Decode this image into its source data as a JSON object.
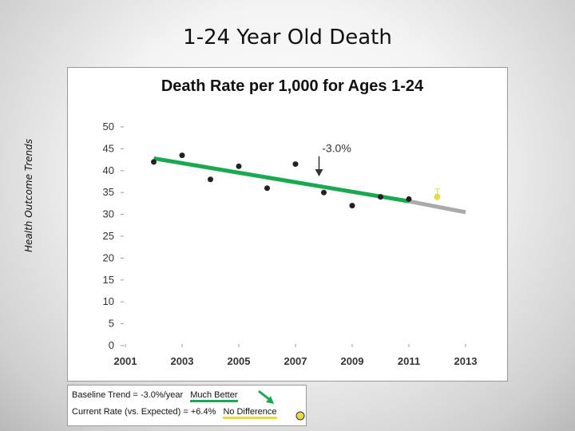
{
  "slide": {
    "title": "1-24 Year Old Death",
    "side_label": "Health Outcome Trends"
  },
  "chart_data": {
    "type": "scatter",
    "title": "Death Rate per 1,000 for Ages 1-24",
    "xlabel": "",
    "ylabel": "",
    "x_ticks": [
      2001,
      2003,
      2005,
      2007,
      2009,
      2011,
      2013
    ],
    "y_ticks": [
      0,
      5,
      10,
      15,
      20,
      25,
      30,
      35,
      40,
      45,
      50
    ],
    "xlim": [
      2001,
      2013
    ],
    "ylim": [
      0,
      50
    ],
    "grid": false,
    "series": [
      {
        "points": [
          {
            "x": 2002,
            "y": 42
          },
          {
            "x": 2003,
            "y": 43.5
          },
          {
            "x": 2004,
            "y": 38
          },
          {
            "x": 2005,
            "y": 41
          },
          {
            "x": 2006,
            "y": 36
          },
          {
            "x": 2007,
            "y": 41.5
          },
          {
            "x": 2008,
            "y": 35
          },
          {
            "x": 2009,
            "y": 32
          },
          {
            "x": 2010,
            "y": 34
          },
          {
            "x": 2011,
            "y": 33.5
          }
        ],
        "color": "#222222"
      }
    ],
    "baseline_trend": {
      "x": [
        2002,
        2011
      ],
      "y": [
        42.8,
        33
      ],
      "color": "#1aa850"
    },
    "expected_trend": {
      "x": [
        2011,
        2013
      ],
      "y": [
        33,
        30.5
      ],
      "color": "#aaaaaa"
    },
    "current_point": {
      "x": 2012,
      "y": 34,
      "color": "#e6d94a"
    },
    "annotation": {
      "text": "-3.0%",
      "x": 2008,
      "y": 38.5
    }
  },
  "legend": {
    "row1_label": "Baseline Trend = ",
    "row1_value": "-3.0%/year",
    "row1_status": "Much Better",
    "row2_label": "Current Rate (vs. Expected) = ",
    "row2_value": "+6.4%",
    "row2_status": "No Difference",
    "arrow_icon": "green-down-arrow",
    "dot_icon": "yellow-dot"
  }
}
